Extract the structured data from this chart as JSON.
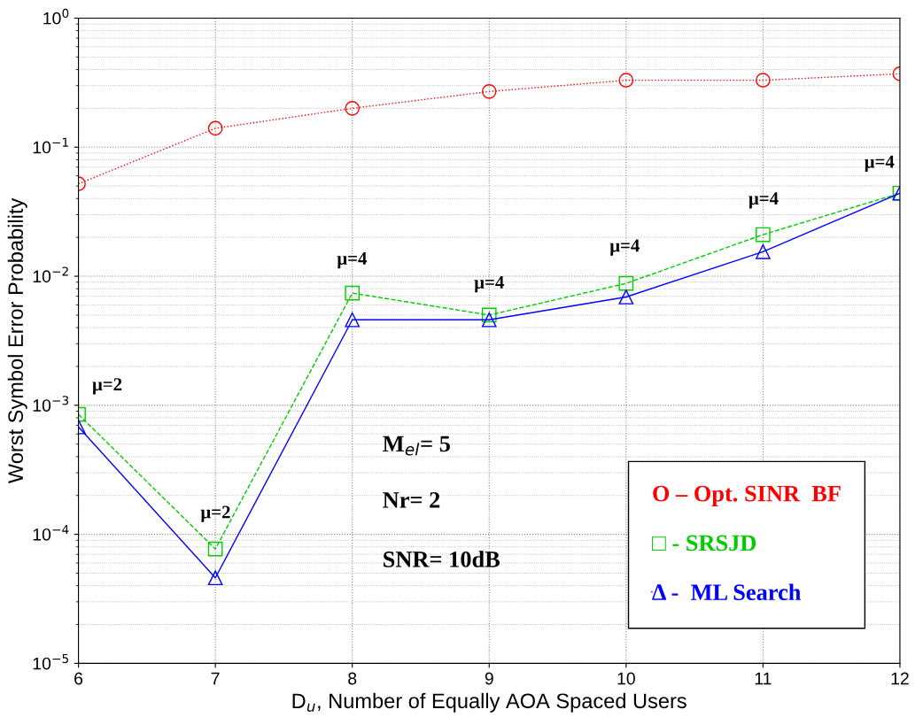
{
  "chart_data": {
    "type": "line",
    "xlabel": "D$_{u}$, Number of Equally AOA Spaced Users",
    "ylabel": "Worst Symbol Error Probability",
    "x": [
      6,
      7,
      8,
      9,
      10,
      11,
      12
    ],
    "series": [
      {
        "name": "O – Opt. SINR  BF",
        "color": "#ff0000",
        "marker": "circle",
        "line_style": "dotted",
        "values": [
          0.052,
          0.14,
          0.2,
          0.27,
          0.33,
          0.33,
          0.37
        ]
      },
      {
        "name": "□ - SRSJD",
        "color": "#00cc00",
        "marker": "square",
        "line_style": "dashed",
        "values": [
          0.00085,
          7.7e-05,
          0.0074,
          0.005,
          0.0088,
          0.021,
          0.044
        ]
      },
      {
        "name": "Δ -  ML Search",
        "color": "#0000ff",
        "marker": "triangle",
        "line_style": "solid",
        "values": [
          0.00068,
          4.6e-05,
          0.0046,
          0.0046,
          0.0069,
          0.0155,
          0.044
        ]
      }
    ],
    "log": "y",
    "xlim": [
      6,
      12
    ],
    "xticks": [
      6,
      7,
      8,
      9,
      10,
      11,
      12
    ],
    "ylim": [
      1e-05,
      1
    ],
    "yticks": [
      {
        "value": 1e-05,
        "label": "10$^{−5}$"
      },
      {
        "value": 0.0001,
        "label": "10$^{−4}$"
      },
      {
        "value": 0.001,
        "label": "10$^{−3}$"
      },
      {
        "value": 0.01,
        "label": "10$^{−2}$"
      },
      {
        "value": 0.1,
        "label": "10$^{−1}$"
      },
      {
        "value": 1,
        "label": "10$^{0}$"
      }
    ],
    "grid": true,
    "legend": "bottom right",
    "annotations": [
      "μ=2",
      "μ=2",
      "μ=4",
      "μ=4",
      "μ=4",
      "μ=4",
      "μ=4",
      "M$_{el}$= 5",
      "Nr= 2",
      "SNR= 10dB"
    ]
  }
}
